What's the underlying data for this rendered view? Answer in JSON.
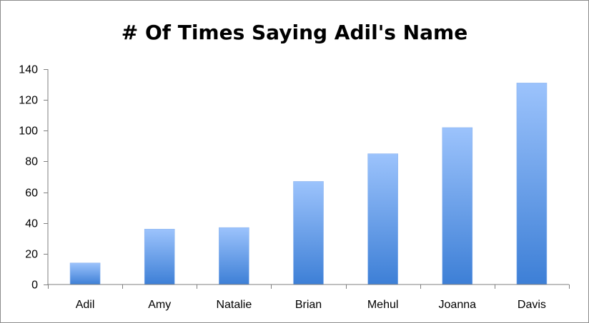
{
  "chart_data": {
    "type": "bar",
    "title": "# Of Times Saying Adil's Name",
    "xlabel": "",
    "ylabel": "",
    "categories": [
      "Adil",
      "Amy",
      "Natalie",
      "Brian",
      "Mehul",
      "Joanna",
      "Davis"
    ],
    "values": [
      14,
      36,
      37,
      67,
      85,
      102,
      131
    ],
    "ylim": [
      0,
      140
    ],
    "yticks": [
      0,
      20,
      40,
      60,
      80,
      100,
      120,
      140
    ],
    "grid": false,
    "legend": "none",
    "colors": {
      "bar_top": "#9cc3fc",
      "bar_bottom": "#3d7fd6",
      "axis": "#7f7f7f"
    }
  }
}
